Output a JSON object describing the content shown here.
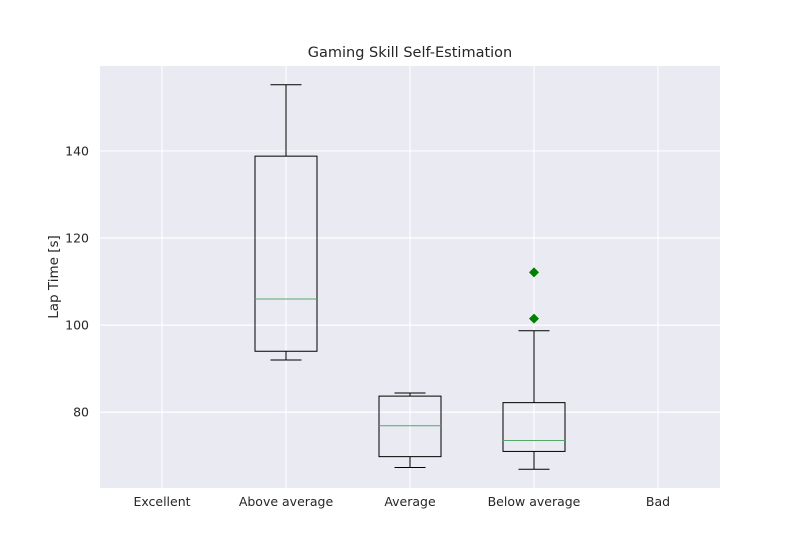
{
  "chart_data": {
    "type": "boxplot",
    "title": "Gaming Skill Self-Estimation",
    "xlabel": "",
    "ylabel": "Lap Time [s]",
    "categories": [
      "Excellent",
      "Above average",
      "Average",
      "Below average",
      "Bad"
    ],
    "yticks": [
      80,
      100,
      120,
      140
    ],
    "ylim": [
      62.6,
      159.5
    ],
    "grid": true,
    "colors": {
      "background": "#eaeaf2",
      "grid": "#ffffff",
      "box": "#000000",
      "median": "#55a868",
      "outlier": "#008000"
    },
    "boxes": [
      {
        "category": "Excellent"
      },
      {
        "category": "Above average",
        "whisker_low": 92.0,
        "q1": 94.0,
        "median": 106.0,
        "q3": 138.8,
        "whisker_high": 155.2,
        "outliers": []
      },
      {
        "category": "Average",
        "whisker_low": 67.3,
        "q1": 69.8,
        "median": 76.9,
        "q3": 83.7,
        "whisker_high": 84.4,
        "outliers": []
      },
      {
        "category": "Below average",
        "whisker_low": 66.9,
        "q1": 71.0,
        "median": 73.5,
        "q3": 82.2,
        "whisker_high": 98.7,
        "outliers": [
          101.5,
          112.1
        ]
      },
      {
        "category": "Bad"
      }
    ]
  }
}
